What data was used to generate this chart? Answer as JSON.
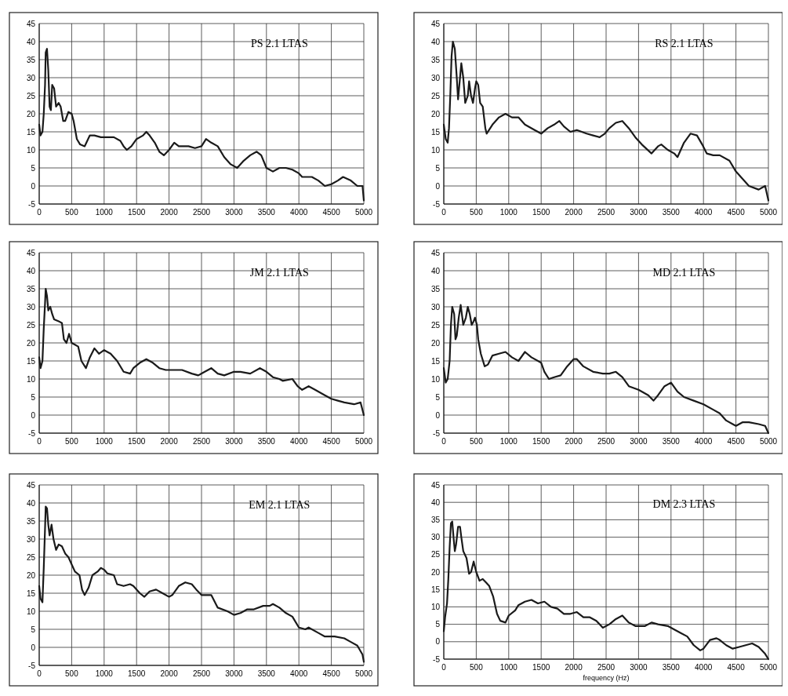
{
  "chart_data": [
    {
      "type": "line",
      "title": "PS 2.1 LTAS",
      "color": "#1a1a1a",
      "xlim": [
        0,
        5000
      ],
      "xticks": [
        0,
        500,
        1000,
        1500,
        2000,
        2500,
        3000,
        3500,
        4000,
        4500,
        5000
      ],
      "ylim": [
        -5,
        45
      ],
      "yticks": [
        -5,
        0,
        5,
        10,
        15,
        20,
        25,
        30,
        35,
        40,
        45
      ],
      "grid": true,
      "x": [
        0,
        20,
        50,
        70,
        90,
        100,
        120,
        140,
        160,
        180,
        200,
        230,
        260,
        300,
        330,
        370,
        400,
        450,
        500,
        530,
        580,
        630,
        700,
        780,
        850,
        950,
        1050,
        1150,
        1250,
        1300,
        1350,
        1420,
        1500,
        1600,
        1650,
        1700,
        1780,
        1850,
        1920,
        2000,
        2080,
        2150,
        2300,
        2400,
        2500,
        2570,
        2650,
        2750,
        2850,
        2950,
        3050,
        3150,
        3250,
        3350,
        3420,
        3500,
        3600,
        3700,
        3800,
        3900,
        4000,
        4050,
        4200,
        4300,
        4400,
        4500,
        4600,
        4680,
        4800,
        4900,
        4980,
        5000
      ],
      "values": [
        17,
        14,
        15,
        20,
        28,
        37,
        38,
        32,
        22,
        21,
        28,
        27,
        22,
        23,
        22,
        18,
        18,
        20.5,
        20,
        18,
        13,
        11.5,
        11,
        14,
        14,
        13.5,
        13.5,
        13.5,
        12.5,
        11,
        10,
        11,
        13,
        14,
        15,
        14,
        12,
        9.5,
        8.5,
        10,
        12,
        11,
        11,
        10.5,
        11,
        13,
        12,
        11,
        8,
        6,
        5,
        7,
        8.5,
        9.5,
        8.5,
        5,
        4,
        5,
        5,
        4.5,
        3.5,
        2.5,
        2.5,
        1.5,
        0,
        0.5,
        1.5,
        2.5,
        1.5,
        0,
        0,
        -4
      ]
    },
    {
      "type": "line",
      "title": "RS 2.1 LTAS",
      "color": "#1a1a1a",
      "xlim": [
        0,
        5000
      ],
      "xticks": [
        0,
        500,
        1000,
        1500,
        2000,
        2500,
        3000,
        3500,
        4000,
        4500,
        5000
      ],
      "ylim": [
        -5,
        45
      ],
      "yticks": [
        -5,
        0,
        5,
        10,
        15,
        20,
        25,
        30,
        35,
        40,
        45
      ],
      "grid": true,
      "x": [
        0,
        30,
        60,
        80,
        100,
        120,
        140,
        170,
        200,
        220,
        240,
        270,
        300,
        330,
        370,
        390,
        420,
        450,
        480,
        500,
        530,
        560,
        600,
        640,
        660,
        750,
        850,
        950,
        1050,
        1150,
        1250,
        1400,
        1500,
        1600,
        1700,
        1780,
        1850,
        1950,
        2050,
        2200,
        2300,
        2400,
        2480,
        2550,
        2650,
        2750,
        2850,
        2950,
        3050,
        3200,
        3300,
        3350,
        3450,
        3550,
        3600,
        3700,
        3800,
        3900,
        3980,
        4050,
        4150,
        4250,
        4400,
        4500,
        4600,
        4700,
        4850,
        4900,
        4950,
        5000
      ],
      "values": [
        17,
        13,
        12,
        16,
        25,
        36,
        40,
        38,
        30,
        24,
        28,
        34,
        30,
        23,
        25,
        29,
        25,
        23,
        27,
        29,
        28,
        23,
        22,
        16,
        14.5,
        17,
        19,
        20,
        19,
        19,
        17,
        15.5,
        14.5,
        16,
        17,
        18,
        16.5,
        15,
        15.5,
        14.5,
        14,
        13.5,
        14.5,
        16,
        17.5,
        18,
        16,
        13.5,
        11.5,
        9,
        11,
        11.5,
        10,
        9,
        8,
        12,
        14.5,
        14,
        11.5,
        9,
        8.5,
        8.5,
        7,
        4,
        2,
        0,
        -1,
        -0.5,
        0,
        -4
      ]
    },
    {
      "type": "line",
      "title": "JM 2.1 LTAS",
      "color": "#1a1a1a",
      "xlim": [
        0,
        5000
      ],
      "xticks": [
        0,
        500,
        1000,
        1500,
        2000,
        2500,
        3000,
        3500,
        4000,
        4500,
        5000
      ],
      "ylim": [
        -5,
        45
      ],
      "yticks": [
        -5,
        0,
        5,
        10,
        15,
        20,
        25,
        30,
        35,
        40,
        45
      ],
      "grid": true,
      "x": [
        0,
        20,
        50,
        70,
        90,
        100,
        120,
        140,
        170,
        200,
        230,
        300,
        350,
        380,
        420,
        460,
        500,
        550,
        600,
        650,
        720,
        780,
        850,
        920,
        1000,
        1100,
        1200,
        1300,
        1400,
        1450,
        1550,
        1650,
        1750,
        1850,
        1950,
        2050,
        2200,
        2350,
        2450,
        2550,
        2650,
        2750,
        2850,
        3000,
        3100,
        3250,
        3400,
        3500,
        3600,
        3700,
        3750,
        3900,
        3980,
        4050,
        4150,
        4250,
        4400,
        4500,
        4600,
        4700,
        4850,
        4950,
        5000
      ],
      "values": [
        16,
        13,
        15,
        24,
        31,
        35,
        33,
        29,
        30,
        28,
        26.5,
        26,
        25.5,
        21,
        20,
        22.5,
        20,
        19.5,
        19,
        15,
        13,
        16,
        18.5,
        17,
        18,
        17,
        15,
        12,
        11.5,
        13,
        14.5,
        15.5,
        14.5,
        13,
        12.5,
        12.5,
        12.5,
        11.5,
        11,
        12,
        13,
        11.5,
        11,
        12,
        12,
        11.5,
        13,
        12,
        10.5,
        10,
        9.5,
        10,
        8,
        7,
        8,
        7,
        5.5,
        4.5,
        4,
        3.5,
        3,
        3.5,
        0
      ]
    },
    {
      "type": "line",
      "title": "MD 2.1 LTAS",
      "color": "#1a1a1a",
      "xlim": [
        0,
        5000
      ],
      "xticks": [
        0,
        500,
        1000,
        1500,
        2000,
        2500,
        3000,
        3500,
        4000,
        4500,
        5000
      ],
      "ylim": [
        -5,
        45
      ],
      "yticks": [
        -5,
        0,
        5,
        10,
        15,
        20,
        25,
        30,
        35,
        40,
        45
      ],
      "grid": true,
      "x": [
        0,
        30,
        60,
        90,
        110,
        130,
        160,
        180,
        200,
        230,
        260,
        300,
        340,
        370,
        400,
        430,
        460,
        480,
        510,
        530,
        570,
        630,
        680,
        750,
        850,
        950,
        1050,
        1150,
        1250,
        1350,
        1500,
        1550,
        1620,
        1700,
        1800,
        1900,
        2000,
        2050,
        2150,
        2300,
        2450,
        2550,
        2650,
        2750,
        2850,
        3000,
        3150,
        3230,
        3300,
        3400,
        3500,
        3600,
        3700,
        3850,
        4000,
        4150,
        4250,
        4350,
        4450,
        4500,
        4600,
        4700,
        4850,
        4950,
        5000
      ],
      "values": [
        13,
        9,
        10,
        15,
        25,
        30,
        28,
        21,
        22,
        27,
        30.5,
        25,
        27,
        30,
        28,
        25,
        26,
        27,
        25,
        21,
        17,
        13.5,
        14,
        16.5,
        17,
        17.5,
        16,
        15,
        17.5,
        16,
        14.5,
        12,
        10,
        10.5,
        11,
        13.5,
        15.5,
        15.5,
        13.5,
        12,
        11.5,
        11.5,
        12,
        10.5,
        8,
        7,
        5.5,
        4,
        5.5,
        8,
        9,
        6.5,
        5,
        4,
        3,
        1.5,
        0.5,
        -1.5,
        -2.5,
        -3,
        -2,
        -2,
        -2.5,
        -3,
        -5
      ]
    },
    {
      "type": "line",
      "title": "EM 2.1 LTAS",
      "color": "#1a1a1a",
      "xlim": [
        0,
        5000
      ],
      "xticks": [
        0,
        500,
        1000,
        1500,
        2000,
        2500,
        3000,
        3500,
        4000,
        4500,
        5000
      ],
      "ylim": [
        -5,
        45
      ],
      "yticks": [
        -5,
        0,
        5,
        10,
        15,
        20,
        25,
        30,
        35,
        40,
        45
      ],
      "grid": true,
      "x": [
        0,
        20,
        50,
        70,
        90,
        100,
        120,
        140,
        160,
        190,
        220,
        260,
        300,
        350,
        400,
        450,
        500,
        550,
        620,
        660,
        700,
        760,
        820,
        900,
        950,
        1000,
        1050,
        1150,
        1200,
        1300,
        1400,
        1450,
        1550,
        1620,
        1700,
        1800,
        1900,
        2000,
        2050,
        2150,
        2250,
        2350,
        2420,
        2500,
        2650,
        2750,
        2900,
        3000,
        3100,
        3200,
        3300,
        3450,
        3550,
        3600,
        3700,
        3800,
        3900,
        4000,
        4100,
        4150,
        4300,
        4400,
        4550,
        4700,
        4800,
        4900,
        4980,
        5000
      ],
      "values": [
        17,
        13.5,
        12.5,
        22,
        33,
        39,
        38.5,
        34,
        31,
        34,
        30,
        27,
        28.5,
        28,
        26,
        25,
        23,
        21,
        20,
        16,
        14.5,
        16.5,
        20,
        21,
        22,
        21.5,
        20.5,
        20,
        17.5,
        17,
        17.5,
        17,
        15,
        14,
        15.5,
        16,
        15,
        14,
        14.5,
        17,
        18,
        17.5,
        16,
        14.5,
        14.5,
        11,
        10,
        9,
        9.5,
        10.5,
        10.5,
        11.5,
        11.5,
        12,
        11,
        9.5,
        8.5,
        5.5,
        5,
        5.5,
        4,
        3,
        3,
        2.5,
        1.5,
        0.5,
        -2,
        -4
      ]
    },
    {
      "type": "line",
      "title": "DM 2.3 LTAS",
      "xlabel": "frequency (Hz)",
      "color": "#1a1a1a",
      "xlim": [
        0,
        5000
      ],
      "xticks": [
        0,
        500,
        1000,
        1500,
        2000,
        2500,
        3000,
        3500,
        4000,
        4500,
        5000
      ],
      "ylim": [
        -5,
        45
      ],
      "yticks": [
        -5,
        0,
        5,
        10,
        15,
        20,
        25,
        30,
        35,
        40,
        45
      ],
      "grid": true,
      "x": [
        0,
        20,
        50,
        70,
        90,
        110,
        130,
        150,
        170,
        190,
        220,
        250,
        270,
        300,
        350,
        390,
        420,
        460,
        500,
        550,
        600,
        650,
        700,
        760,
        820,
        870,
        950,
        1000,
        1100,
        1150,
        1250,
        1350,
        1450,
        1550,
        1650,
        1750,
        1850,
        1950,
        2050,
        2150,
        2250,
        2350,
        2450,
        2550,
        2650,
        2750,
        2850,
        2950,
        3100,
        3200,
        3300,
        3450,
        3550,
        3650,
        3750,
        3850,
        3950,
        4000,
        4100,
        4200,
        4250,
        4350,
        4450,
        4550,
        4650,
        4750,
        4850,
        4950,
        5000
      ],
      "values": [
        3,
        7,
        11,
        18,
        27,
        34,
        34.5,
        30,
        26,
        28,
        33,
        33,
        30,
        26,
        24,
        19.5,
        20,
        23,
        20,
        17.5,
        18,
        17,
        16,
        13,
        8,
        6,
        5.5,
        7.5,
        9,
        10.5,
        11.5,
        12,
        11,
        11.5,
        10,
        9.5,
        8,
        8,
        8.5,
        7,
        7,
        6,
        4,
        5,
        6.5,
        7.5,
        5.5,
        4.5,
        4.5,
        5.5,
        5,
        4.5,
        3.5,
        2.5,
        1.5,
        -1,
        -2.5,
        -2,
        0.5,
        1,
        0.5,
        -1,
        -2,
        -1.5,
        -1,
        -0.5,
        -1.5,
        -3.5,
        -5
      ]
    }
  ]
}
